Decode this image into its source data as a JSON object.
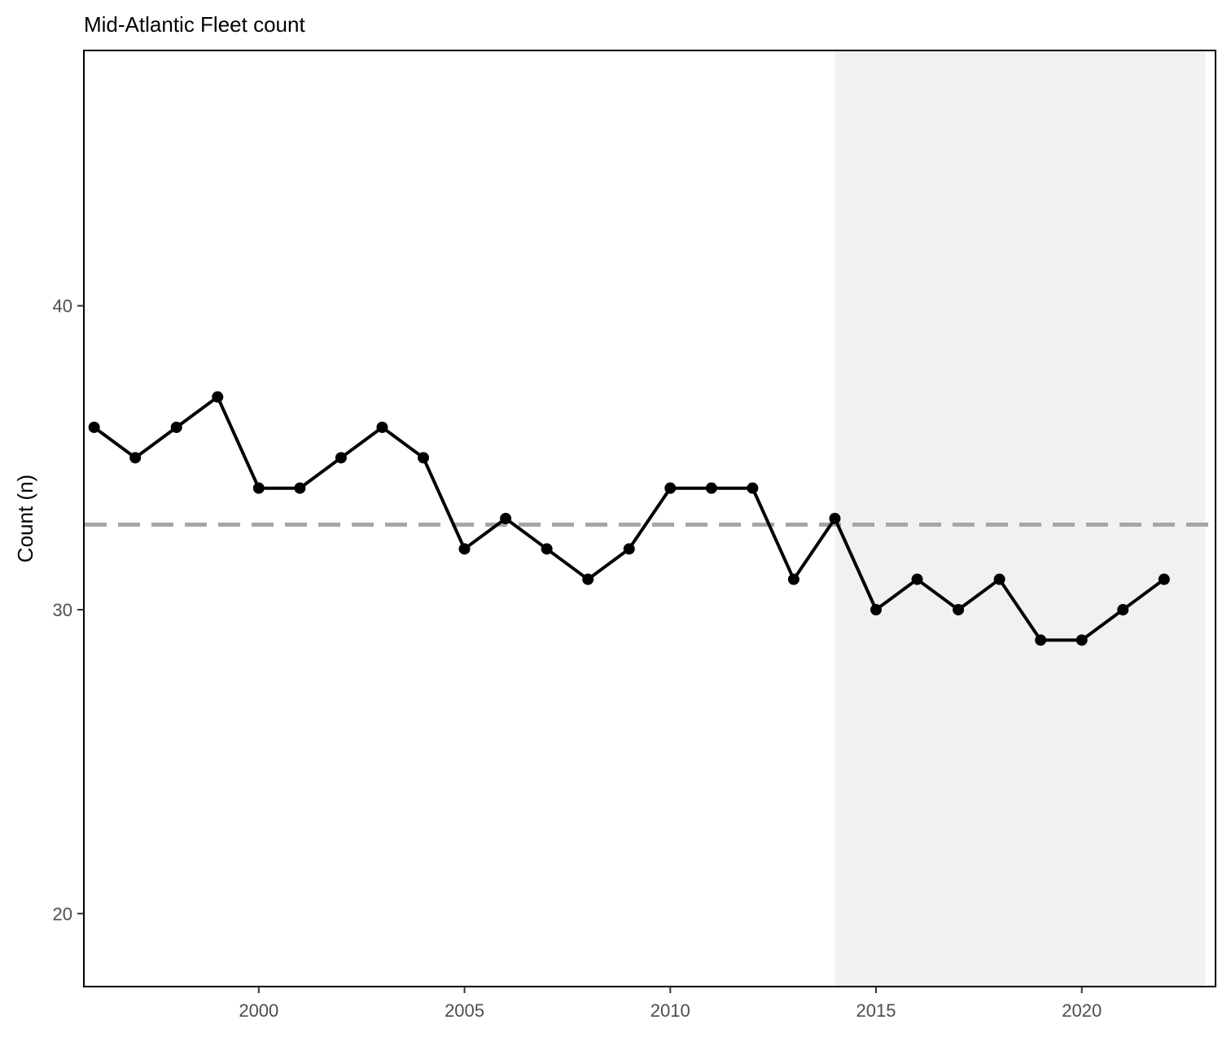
{
  "chart_data": {
    "type": "line",
    "title": "Mid-Atlantic Fleet count",
    "xlabel": "",
    "ylabel": "Count (n)",
    "x": [
      1996,
      1997,
      1998,
      1999,
      2000,
      2001,
      2002,
      2003,
      2004,
      2005,
      2006,
      2007,
      2008,
      2009,
      2010,
      2011,
      2012,
      2013,
      2014,
      2015,
      2016,
      2017,
      2018,
      2019,
      2020,
      2021,
      2022
    ],
    "series": [
      {
        "name": "",
        "values": [
          36,
          35,
          36,
          37,
          34,
          34,
          35,
          36,
          35,
          32,
          33,
          32,
          31,
          32,
          34,
          34,
          34,
          31,
          33,
          30,
          31,
          30,
          31,
          29,
          29,
          30,
          31
        ],
        "color": "#000000"
      }
    ],
    "xlim": [
      1995.75,
      2023.25
    ],
    "ylim": [
      17.6,
      48.4
    ],
    "xticks": [
      2000,
      2005,
      2010,
      2015,
      2020
    ],
    "yticks": [
      20,
      30,
      40
    ],
    "reference_line": {
      "y": 32.8,
      "style": "dashed",
      "color": "#a6a6a6"
    },
    "shaded_region": {
      "x_start": 2014,
      "x_end": 2023,
      "color": "#f1f1f1"
    },
    "grid": false
  }
}
